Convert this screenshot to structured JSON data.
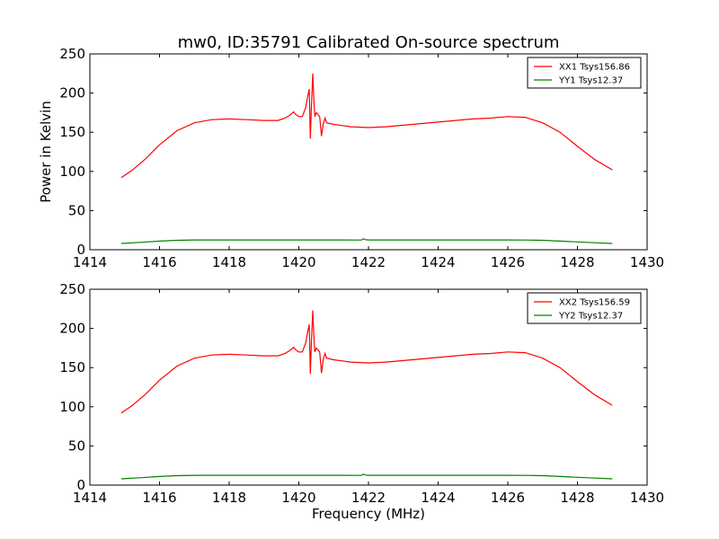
{
  "figure": {
    "title": "mw0, ID:35791 Calibrated On-source spectrum"
  },
  "chart_data": [
    {
      "type": "line",
      "title": "mw0, ID:35791 Calibrated On-source spectrum",
      "xlabel": "",
      "ylabel": "Power in Kelvin",
      "xlim": [
        1414,
        1430
      ],
      "ylim": [
        0,
        250
      ],
      "x_ticks": [
        "1414",
        "1416",
        "1418",
        "1420",
        "1422",
        "1424",
        "1426",
        "1428",
        "1430"
      ],
      "y_ticks": [
        "0",
        "50",
        "100",
        "150",
        "200",
        "250"
      ],
      "legend_position": "top-right",
      "grid": false,
      "series": [
        {
          "name": "XX1 Tsys156.86",
          "color": "#ff0000",
          "x": [
            1414.9,
            1415.2,
            1415.6,
            1416.0,
            1416.5,
            1417.0,
            1417.5,
            1418.0,
            1418.5,
            1419.0,
            1419.4,
            1419.6,
            1419.75,
            1419.85,
            1419.9,
            1420.0,
            1420.1,
            1420.2,
            1420.25,
            1420.3,
            1420.33,
            1420.36,
            1420.4,
            1420.43,
            1420.46,
            1420.5,
            1420.6,
            1420.65,
            1420.7,
            1420.75,
            1420.8,
            1421.0,
            1421.5,
            1422.0,
            1422.5,
            1423.0,
            1423.5,
            1424.0,
            1424.5,
            1425.0,
            1425.5,
            1426.0,
            1426.5,
            1427.0,
            1427.5,
            1428.0,
            1428.5,
            1429.0
          ],
          "values": [
            92,
            101,
            116,
            134,
            152,
            162,
            166,
            167,
            166,
            165,
            165,
            168,
            172,
            176,
            173,
            170,
            170,
            182,
            195,
            205,
            142,
            180,
            225,
            192,
            170,
            175,
            170,
            145,
            160,
            168,
            162,
            160,
            157,
            156,
            157,
            159,
            161,
            163,
            165,
            167,
            168,
            170,
            169,
            162,
            150,
            132,
            115,
            102
          ]
        },
        {
          "name": "YY1 Tsys12.37",
          "color": "#008000",
          "x": [
            1414.9,
            1415.5,
            1416.0,
            1416.5,
            1417.0,
            1418.0,
            1419.0,
            1420.0,
            1421.0,
            1421.8,
            1421.85,
            1421.9,
            1422.0,
            1423.0,
            1424.0,
            1425.0,
            1426.0,
            1426.5,
            1427.0,
            1427.5,
            1428.0,
            1428.5,
            1429.0
          ],
          "values": [
            8,
            9.5,
            11,
            12,
            12.5,
            12.5,
            12.5,
            12.5,
            12.5,
            12.4,
            14,
            13,
            12.5,
            12.5,
            12.5,
            12.5,
            12.5,
            12.4,
            12,
            11,
            10,
            9,
            8
          ]
        }
      ]
    },
    {
      "type": "line",
      "title": "",
      "xlabel": "Frequency (MHz)",
      "ylabel": "",
      "xlim": [
        1414,
        1430
      ],
      "ylim": [
        0,
        250
      ],
      "x_ticks": [
        "1414",
        "1416",
        "1418",
        "1420",
        "1422",
        "1424",
        "1426",
        "1428",
        "1430"
      ],
      "y_ticks": [
        "0",
        "50",
        "100",
        "150",
        "200",
        "250"
      ],
      "legend_position": "top-right",
      "grid": false,
      "series": [
        {
          "name": "XX2 Tsys156.59",
          "color": "#ff0000",
          "x": [
            1414.9,
            1415.2,
            1415.6,
            1416.0,
            1416.5,
            1417.0,
            1417.5,
            1418.0,
            1418.5,
            1419.0,
            1419.4,
            1419.6,
            1419.75,
            1419.85,
            1419.9,
            1420.0,
            1420.1,
            1420.2,
            1420.25,
            1420.3,
            1420.33,
            1420.36,
            1420.4,
            1420.43,
            1420.46,
            1420.5,
            1420.6,
            1420.65,
            1420.7,
            1420.75,
            1420.8,
            1421.0,
            1421.5,
            1422.0,
            1422.5,
            1423.0,
            1423.5,
            1424.0,
            1424.5,
            1425.0,
            1425.5,
            1426.0,
            1426.5,
            1427.0,
            1427.5,
            1428.0,
            1428.5,
            1429.0
          ],
          "values": [
            92,
            101,
            116,
            134,
            152,
            162,
            166,
            167,
            166,
            165,
            165,
            168,
            172,
            176,
            173,
            170,
            170,
            182,
            195,
            205,
            142,
            180,
            223,
            192,
            170,
            175,
            170,
            143,
            160,
            168,
            162,
            160,
            157,
            156,
            157,
            159,
            161,
            163,
            165,
            167,
            168,
            170,
            169,
            162,
            150,
            132,
            115,
            102
          ]
        },
        {
          "name": "YY2 Tsys12.37",
          "color": "#008000",
          "x": [
            1414.9,
            1415.5,
            1416.0,
            1416.5,
            1417.0,
            1418.0,
            1419.0,
            1420.0,
            1421.0,
            1421.8,
            1421.85,
            1421.9,
            1422.0,
            1423.0,
            1424.0,
            1425.0,
            1426.0,
            1426.5,
            1427.0,
            1427.5,
            1428.0,
            1428.5,
            1429.0
          ],
          "values": [
            8,
            9.5,
            11,
            12,
            12.5,
            12.5,
            12.5,
            12.5,
            12.5,
            12.4,
            14,
            13,
            12.5,
            12.5,
            12.5,
            12.5,
            12.5,
            12.4,
            12,
            11,
            10,
            9,
            8
          ]
        }
      ]
    }
  ]
}
